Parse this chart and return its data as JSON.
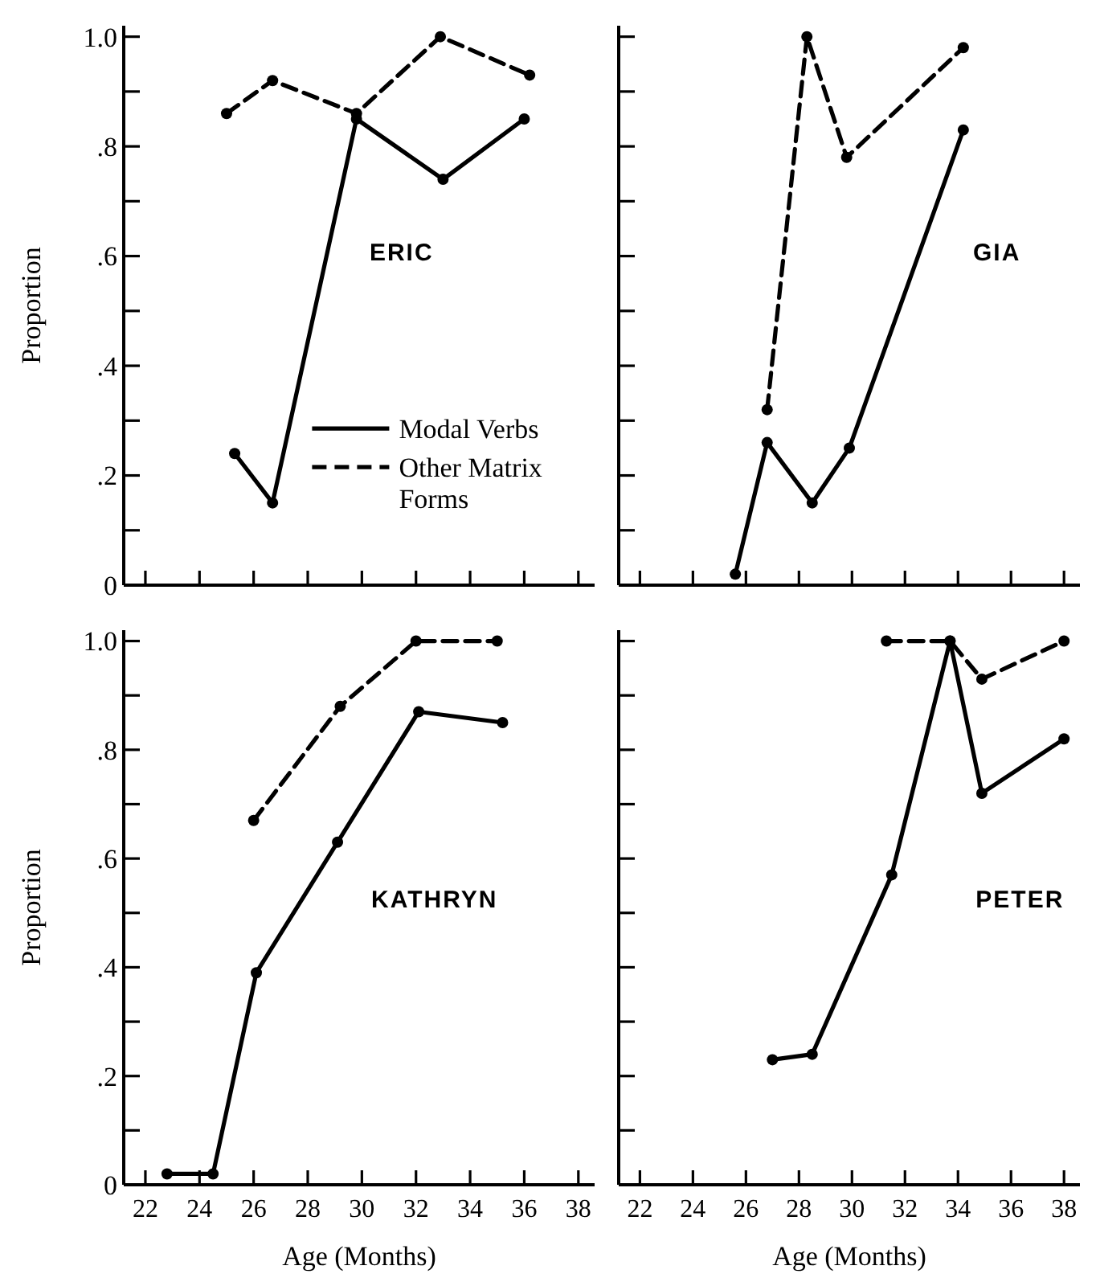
{
  "chart_data": [
    {
      "type": "line",
      "title": "ERIC",
      "ylabel": "Proportion",
      "xlim": [
        21.2,
        38.6
      ],
      "ylim": [
        0,
        1.02
      ],
      "xticks": [
        22,
        24,
        26,
        28,
        30,
        32,
        34,
        36,
        38
      ],
      "yticks": [
        0,
        {
          "value": 0.1,
          "label": null
        },
        {
          "value": 0.2,
          "label": ".2"
        },
        {
          "value": 0.3,
          "label": null
        },
        {
          "value": 0.4,
          "label": ".4"
        },
        {
          "value": 0.5,
          "label": null
        },
        {
          "value": 0.6,
          "label": ".6"
        },
        {
          "value": 0.7,
          "label": null
        },
        {
          "value": 0.8,
          "label": ".8"
        },
        {
          "value": 0.9,
          "label": null
        },
        {
          "value": 1.0,
          "label": "1.0"
        }
      ],
      "tick_labels": "y",
      "legend": "bottom",
      "marker": "circle",
      "series": [
        {
          "name": "Modal Verbs",
          "color": "#000000",
          "line_style": "solid",
          "x": [
            25.3,
            26.7,
            29.8,
            33.0,
            36.0
          ],
          "values": [
            0.24,
            0.15,
            0.85,
            0.74,
            0.85
          ]
        },
        {
          "name": "Other Matrix Forms",
          "color": "#000000",
          "line_style": "dashed",
          "x": [
            25.0,
            26.7,
            29.8,
            32.9,
            36.2
          ],
          "values": [
            0.86,
            0.92,
            0.86,
            1.0,
            0.93
          ]
        }
      ]
    },
    {
      "type": "line",
      "title": "GIA",
      "xlim": [
        21.2,
        38.6
      ],
      "ylim": [
        0,
        1.02
      ],
      "xticks": [
        22,
        24,
        26,
        28,
        30,
        32,
        34,
        36,
        38
      ],
      "yticks": [
        {
          "value": 0.1,
          "label": null
        },
        {
          "value": 0.2,
          "label": null
        },
        {
          "value": 0.3,
          "label": null
        },
        {
          "value": 0.4,
          "label": null
        },
        {
          "value": 0.5,
          "label": null
        },
        {
          "value": 0.6,
          "label": null
        },
        {
          "value": 0.7,
          "label": null
        },
        {
          "value": 0.8,
          "label": null
        },
        {
          "value": 0.9,
          "label": null
        },
        {
          "value": 1.0,
          "label": null
        }
      ],
      "tick_labels": false,
      "marker": "circle",
      "series": [
        {
          "color": "#000000",
          "line_style": "solid",
          "x": [
            25.6,
            26.8,
            28.5,
            29.9,
            34.2
          ],
          "values": [
            0.02,
            0.26,
            0.15,
            0.25,
            0.83
          ]
        },
        {
          "color": "#000000",
          "line_style": "dashed",
          "x": [
            26.8,
            28.3,
            29.8,
            34.2
          ],
          "values": [
            0.32,
            1.0,
            0.78,
            0.98
          ]
        }
      ]
    },
    {
      "type": "line",
      "title": "KATHRYN",
      "xlabel": "Age (Months)",
      "ylabel": "Proportion",
      "xlim": [
        21.2,
        38.6
      ],
      "ylim": [
        0,
        1.02
      ],
      "xticks": [
        22,
        24,
        26,
        28,
        30,
        32,
        34,
        36,
        38
      ],
      "yticks": [
        0,
        {
          "value": 0.1,
          "label": null
        },
        {
          "value": 0.2,
          "label": ".2"
        },
        {
          "value": 0.3,
          "label": null
        },
        {
          "value": 0.4,
          "label": ".4"
        },
        {
          "value": 0.5,
          "label": null
        },
        {
          "value": 0.6,
          "label": ".6"
        },
        {
          "value": 0.7,
          "label": null
        },
        {
          "value": 0.8,
          "label": ".8"
        },
        {
          "value": 0.9,
          "label": null
        },
        {
          "value": 1.0,
          "label": "1.0"
        }
      ],
      "marker": "circle",
      "series": [
        {
          "color": "#000000",
          "line_style": "solid",
          "x": [
            22.8,
            24.5,
            26.1,
            29.1,
            32.1,
            35.2
          ],
          "values": [
            0.02,
            0.02,
            0.39,
            0.63,
            0.87,
            0.85
          ]
        },
        {
          "color": "#000000",
          "line_style": "dashed",
          "x": [
            26.0,
            29.2,
            32.0,
            35.0
          ],
          "values": [
            0.67,
            0.88,
            1.0,
            1.0
          ]
        }
      ]
    },
    {
      "type": "line",
      "title": "PETER",
      "xlabel": "Age (Months)",
      "xlim": [
        21.2,
        38.6
      ],
      "ylim": [
        0,
        1.02
      ],
      "xticks": [
        22,
        24,
        26,
        28,
        30,
        32,
        34,
        36,
        38
      ],
      "yticks": [
        {
          "value": 0.1,
          "label": null
        },
        {
          "value": 0.2,
          "label": null
        },
        {
          "value": 0.3,
          "label": null
        },
        {
          "value": 0.4,
          "label": null
        },
        {
          "value": 0.5,
          "label": null
        },
        {
          "value": 0.6,
          "label": null
        },
        {
          "value": 0.7,
          "label": null
        },
        {
          "value": 0.8,
          "label": null
        },
        {
          "value": 0.9,
          "label": null
        },
        {
          "value": 1.0,
          "label": null
        }
      ],
      "tick_labels": "x",
      "marker": "circle",
      "series": [
        {
          "color": "#000000",
          "line_style": "solid",
          "x": [
            27.0,
            28.5,
            31.5,
            33.7,
            34.9,
            38.0
          ],
          "values": [
            0.23,
            0.24,
            0.57,
            1.0,
            0.72,
            0.82
          ]
        },
        {
          "color": "#000000",
          "line_style": "dashed",
          "x": [
            31.3,
            33.7,
            34.9,
            38.0
          ],
          "values": [
            1.0,
            1.0,
            0.93,
            1.0
          ]
        }
      ]
    }
  ]
}
